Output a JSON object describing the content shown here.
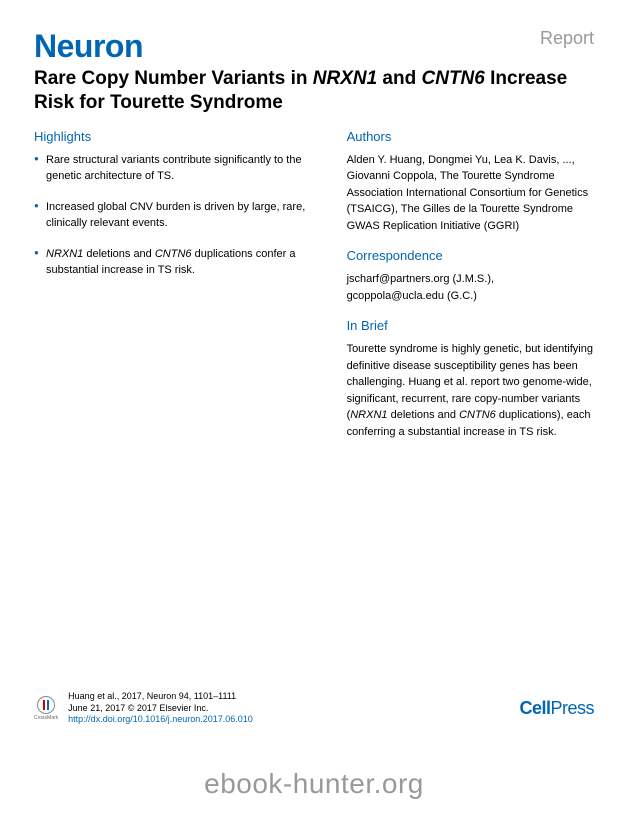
{
  "header": {
    "journal_name": "Neuron",
    "article_type": "Report"
  },
  "title": {
    "prefix": "Rare Copy Number Variants in ",
    "gene1": "NRXN1",
    "mid": " and ",
    "gene2": "CNTN6",
    "suffix": " Increase Risk for Tourette Syndrome"
  },
  "highlights": {
    "heading": "Highlights",
    "items": [
      "Rare structural variants contribute significantly to the genetic architecture of TS.",
      "Increased global CNV burden is driven by large, rare, clinically relevant events.",
      "NRXN1 deletions and CNTN6 duplications confer a substantial increase in TS risk."
    ]
  },
  "authors": {
    "heading": "Authors",
    "text": "Alden Y. Huang, Dongmei Yu, Lea K. Davis, ..., Giovanni Coppola, The Tourette Syndrome Association International Consortium for Genetics (TSAICG), The Gilles de la Tourette Syndrome GWAS Replication Initiative (GGRI)"
  },
  "correspondence": {
    "heading": "Correspondence",
    "text": "jscharf@partners.org (J.M.S.), gcoppola@ucla.edu (G.C.)"
  },
  "inbrief": {
    "heading": "In Brief",
    "text_before": "Tourette syndrome is highly genetic, but identifying definitive disease susceptibility genes has been challenging. Huang et al. report two genome-wide, significant, recurrent, rare copy-number variants (",
    "gene1": "NRXN1",
    "mid1": " deletions and ",
    "gene2": "CNTN6",
    "text_after": " duplications), each conferring a substantial increase in TS risk."
  },
  "footer": {
    "crossmark_label": "CrossMark",
    "citation_line1": "Huang et al., 2017, Neuron 94, 1101–1111",
    "citation_line2": "June 21, 2017 © 2017 Elsevier Inc.",
    "doi": "http://dx.doi.org/10.1016/j.neuron.2017.06.010",
    "publisher_cell": "Cell",
    "publisher_press": "Press"
  },
  "watermark": "ebook-hunter.org",
  "colors": {
    "primary_blue": "#0066b3",
    "text_black": "#000000",
    "light_gray": "#999999"
  }
}
